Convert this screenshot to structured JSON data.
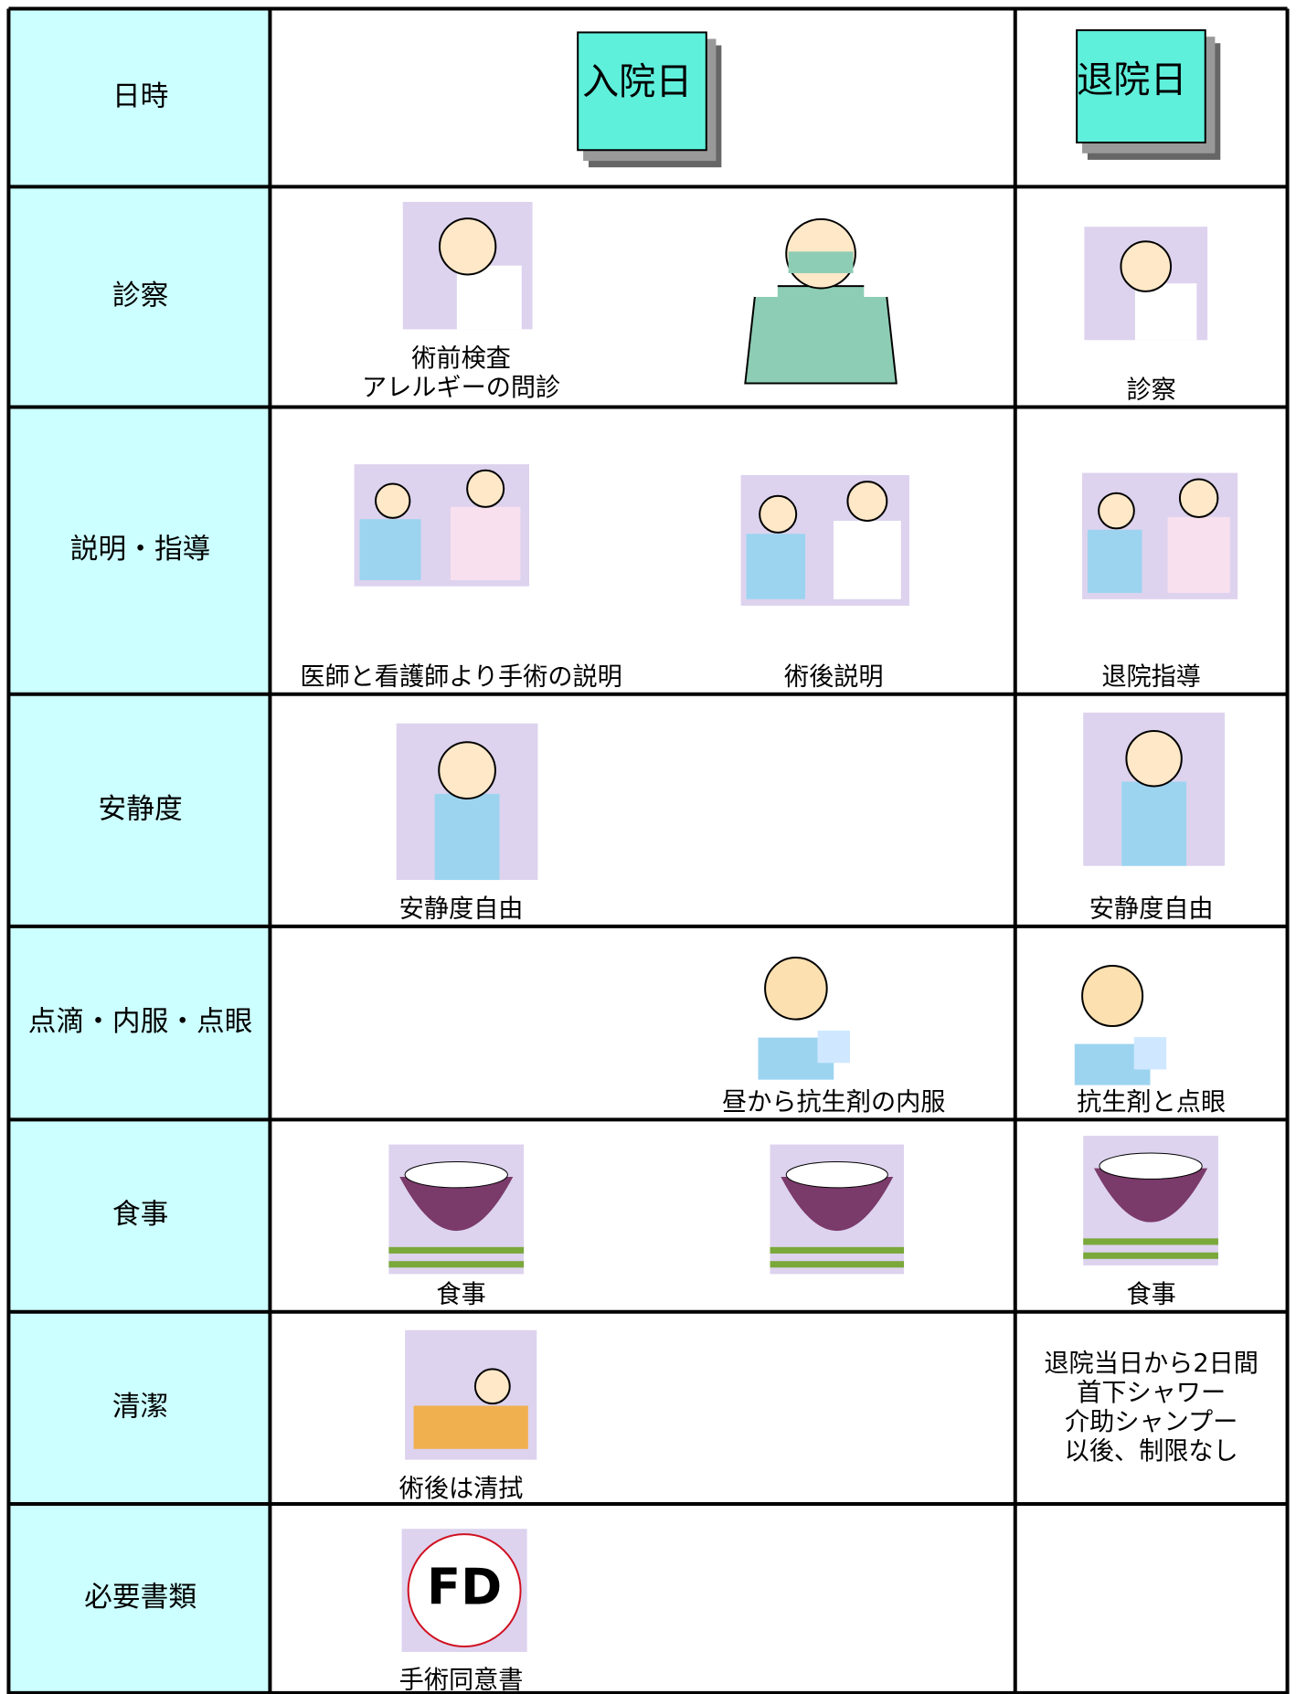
{
  "table": {
    "rows": [
      {
        "label": "日時",
        "admission": [
          [
            "入院日"
          ]
        ],
        "discharge": [
          "退院日"
        ]
      },
      {
        "label": "診察",
        "admission": [
          [
            "術前検査",
            "アレルギーの問診"
          ]
        ],
        "discharge": [
          "診察"
        ]
      },
      {
        "label": "説明・指導",
        "admission": [
          [
            "医師と看護師より手術の説明"
          ],
          [
            "術後説明"
          ]
        ],
        "discharge": [
          "退院指導"
        ]
      },
      {
        "label": "安静度",
        "admission": [
          [
            "安静度自由"
          ]
        ],
        "discharge": [
          "安静度自由"
        ]
      },
      {
        "label": "点滴・内服・点眼",
        "admission": [
          [
            "昼から抗生剤の内服"
          ]
        ],
        "discharge": [
          "抗生剤と点眼"
        ]
      },
      {
        "label": "食事",
        "admission": [
          [
            "食事"
          ]
        ],
        "discharge": [
          "食事"
        ]
      },
      {
        "label": "清潔",
        "admission": [
          [
            "術後は清拭"
          ]
        ],
        "discharge": [
          "退院当日から2日間",
          "首下シャワー",
          "介助シャンプー",
          "以後、制限なし"
        ]
      },
      {
        "label": "必要書類",
        "admission": [
          [
            "手術同意書"
          ]
        ]
      }
    ]
  }
}
